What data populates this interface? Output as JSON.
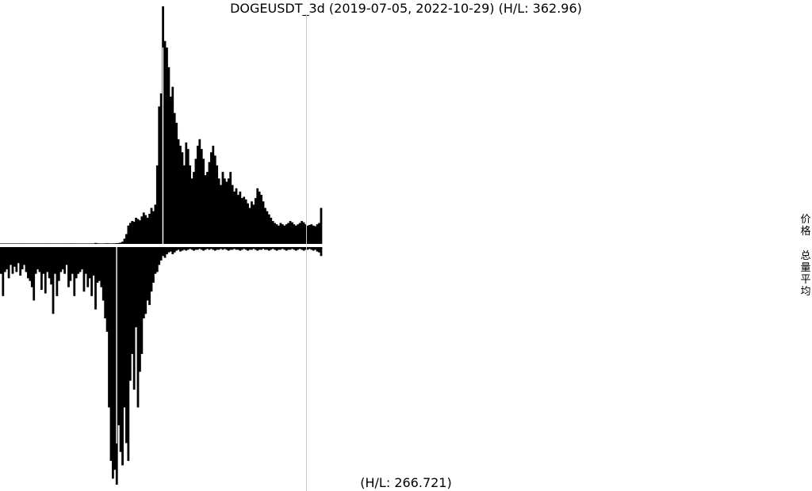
{
  "title": "DOGEUSDT_3d (2019-07-05, 2022-10-29) (H/L: 362.96)",
  "footer": "(H/L: 266.721)",
  "side_labels": {
    "price": "价格",
    "volume": "总量平均"
  },
  "colors": {
    "bars": "#000000",
    "marker": "#ffffff",
    "guide": "#c8c8c8",
    "background": "#ffffff"
  },
  "chart_data": [
    {
      "type": "bar",
      "title": "DOGEUSDT_3d (2019-07-05, 2022-10-29) (H/L: 362.96)",
      "xlabel": "",
      "ylabel": "价格",
      "x_range": [
        "2019-07-05",
        "2022-10-29"
      ],
      "ylim": [
        0,
        362.96
      ],
      "series": [
        {
          "values": [
            0.3,
            0.4,
            0.3,
            0.4,
            0.5,
            0.4,
            0.3,
            0.3,
            0.4,
            0.5,
            0.4,
            0.3,
            0.3,
            0.4,
            0.3,
            0.3,
            0.4,
            0.5,
            0.6,
            0.5,
            0.4,
            0.4,
            0.5,
            0.6,
            0.7,
            0.6,
            0.5,
            0.4,
            0.4,
            0.5,
            0.6,
            0.5,
            0.4,
            0.5,
            0.6,
            0.7,
            0.8,
            0.7,
            0.6,
            0.6,
            0.5,
            0.5,
            0.6,
            0.7,
            0.6,
            0.5,
            0.5,
            0.6,
            0.7,
            1.5,
            1.0,
            0.8,
            0.7,
            0.8,
            0.9,
            1.0,
            0.9,
            0.8,
            0.9,
            1.0,
            1.2,
            1.4,
            2.0,
            3.5,
            8.0,
            15.0,
            28.0,
            32.0,
            35.0,
            34.0,
            40.0,
            38.0,
            36.0,
            42.0,
            48.0,
            44.0,
            40.0,
            46.0,
            55.0,
            50.0,
            60.0,
            120.0,
            210.0,
            230.0,
            362.96,
            310.0,
            300.0,
            270.0,
            225.0,
            240.0,
            200.0,
            185.0,
            160.0,
            150.0,
            140.0,
            120.0,
            155.0,
            145.0,
            120.0,
            100.0,
            110.0,
            130.0,
            150.0,
            160.0,
            145.0,
            130.0,
            105.0,
            110.0,
            125.0,
            140.0,
            150.0,
            135.0,
            120.0,
            100.0,
            90.0,
            110.0,
            100.0,
            95.0,
            100.0,
            110.0,
            90.0,
            80.0,
            85.0,
            75.0,
            80.0,
            70.0,
            72.0,
            68.0,
            62.0,
            55.0,
            65.0,
            60.0,
            70.0,
            85.0,
            80.0,
            75.0,
            65.0,
            55.0,
            50.0,
            45.0,
            40.0,
            35.0,
            32.0,
            30.0,
            28.0,
            32.0,
            30.0,
            28.0,
            30.0,
            32.0,
            35.0,
            33.0,
            30.0,
            28.0,
            30.0,
            32.0,
            35.0,
            33.0,
            30.0,
            28.0,
            29.0,
            30.0,
            28.0,
            27.0,
            30.0,
            32.0,
            55.0
          ]
        }
      ]
    },
    {
      "type": "bar",
      "title": "",
      "xlabel": "",
      "ylabel": "总量平均",
      "ylim": [
        0,
        266.721
      ],
      "inverted": true,
      "series": [
        {
          "values": [
            30,
            55,
            28,
            25,
            35,
            20,
            30,
            22,
            28,
            18,
            32,
            25,
            20,
            28,
            35,
            38,
            45,
            60,
            30,
            25,
            28,
            48,
            30,
            52,
            28,
            35,
            42,
            75,
            30,
            55,
            38,
            28,
            25,
            30,
            20,
            45,
            38,
            30,
            55,
            35,
            30,
            28,
            25,
            50,
            30,
            45,
            35,
            55,
            32,
            70,
            40,
            38,
            45,
            60,
            80,
            95,
            180,
            240,
            260,
            250,
            266.721,
            200,
            230,
            245,
            180,
            220,
            240,
            150,
            120,
            160,
            90,
            180,
            140,
            120,
            80,
            75,
            60,
            65,
            50,
            40,
            30,
            28,
            20,
            15,
            10,
            12,
            8,
            6,
            5,
            8,
            6,
            4,
            3,
            5,
            4,
            3,
            4,
            3,
            2,
            3,
            4,
            3,
            3,
            2,
            3,
            4,
            3,
            2,
            3,
            2,
            3,
            4,
            3,
            3,
            2,
            3,
            2,
            3,
            4,
            3,
            3,
            2,
            3,
            3,
            4,
            3,
            2,
            3,
            4,
            3,
            3,
            2,
            3,
            4,
            3,
            3,
            2,
            3,
            3,
            4,
            3,
            2,
            3,
            4,
            3,
            3,
            2,
            3,
            4,
            3,
            3,
            2,
            3,
            4,
            3,
            2,
            3,
            4,
            3,
            3,
            2,
            3,
            4,
            3,
            5,
            6,
            10
          ]
        }
      ]
    }
  ]
}
